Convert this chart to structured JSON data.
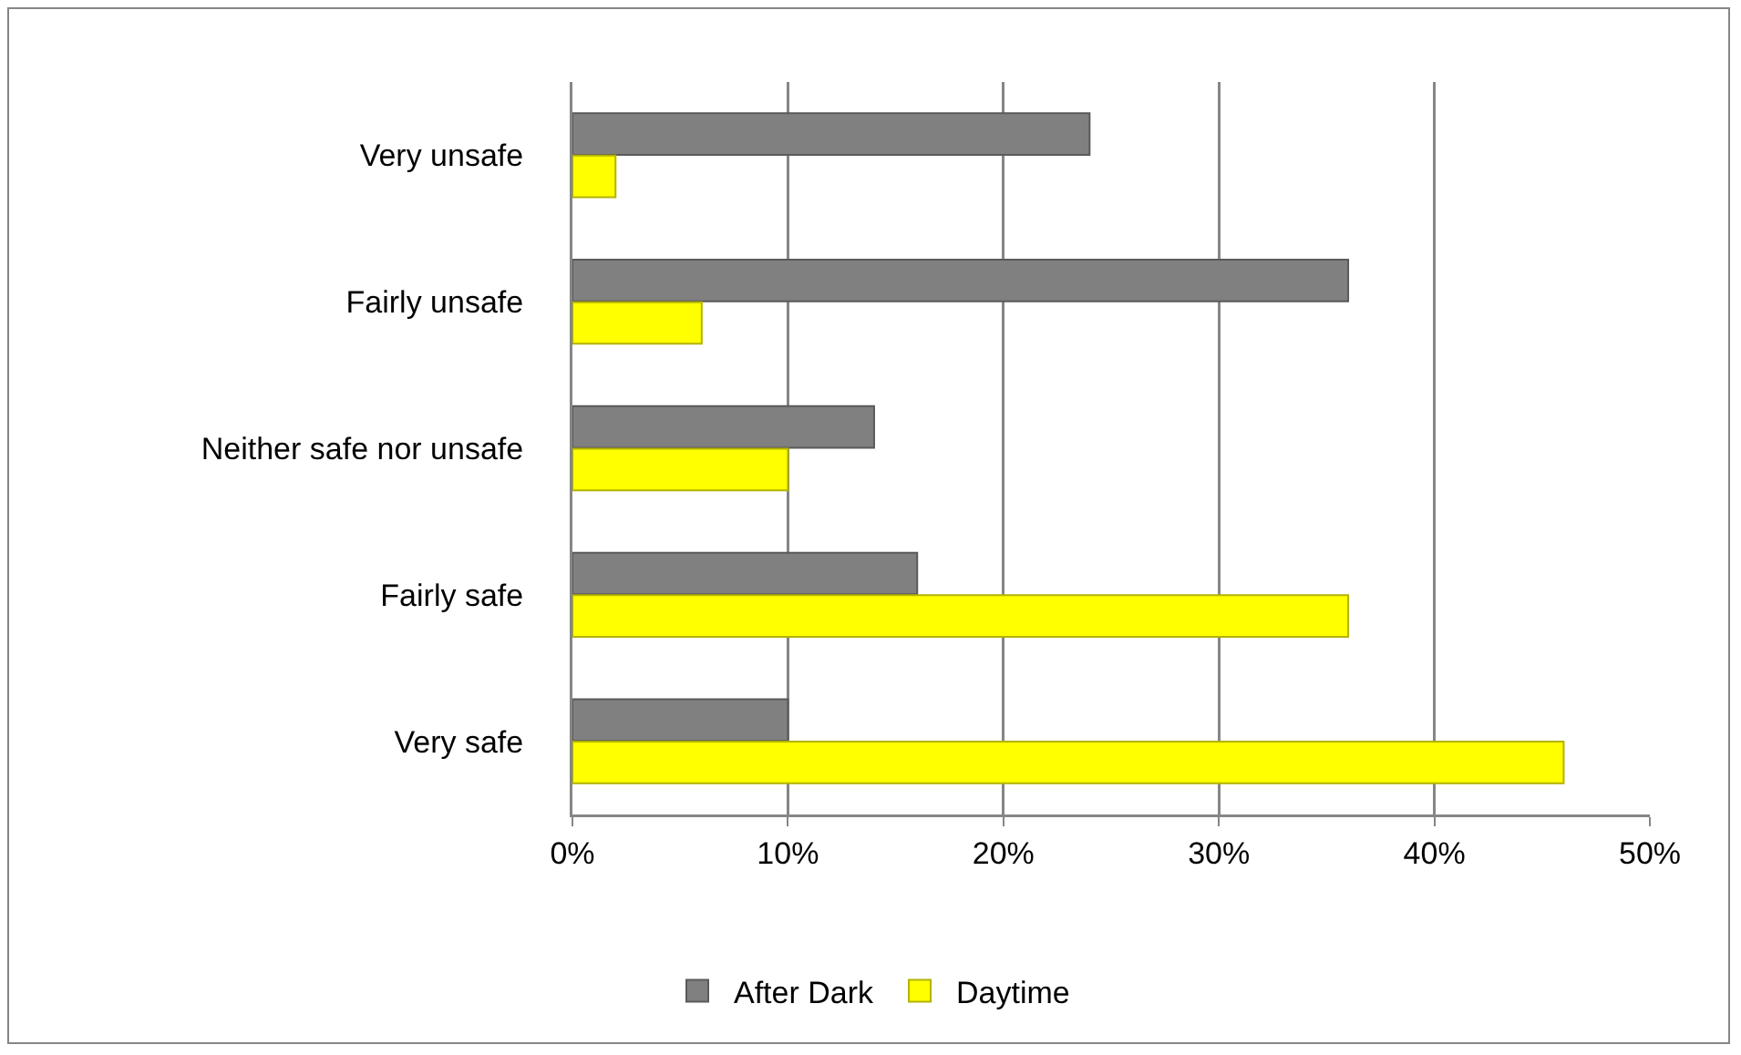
{
  "chart_data": {
    "type": "bar",
    "orientation": "horizontal",
    "categories": [
      "Very unsafe",
      "Fairly unsafe",
      "Neither safe nor unsafe",
      "Fairly safe",
      "Very safe"
    ],
    "series": [
      {
        "name": "After Dark",
        "color": "#808080",
        "values": [
          24,
          36,
          14,
          16,
          10
        ]
      },
      {
        "name": "Daytime",
        "color": "#ffff00",
        "values": [
          2,
          6,
          10,
          36,
          46
        ]
      }
    ],
    "xlim": [
      0,
      50
    ],
    "xticks": [
      {
        "value": 0,
        "label": "0%"
      },
      {
        "value": 10,
        "label": "10%"
      },
      {
        "value": 20,
        "label": "20%"
      },
      {
        "value": 30,
        "label": "30%"
      },
      {
        "value": 40,
        "label": "40%"
      },
      {
        "value": 50,
        "label": "50%"
      }
    ],
    "grid": "x",
    "legend": "bottom"
  }
}
